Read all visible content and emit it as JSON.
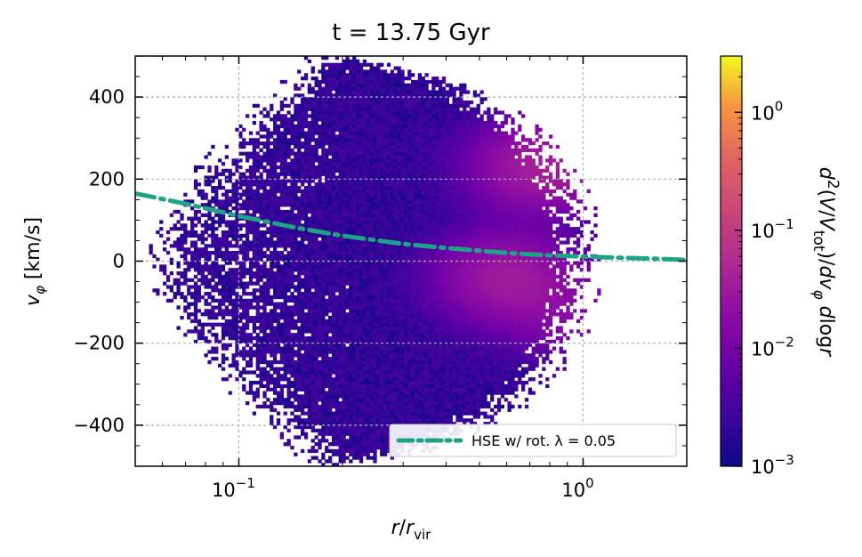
{
  "chart_data": {
    "type": "heatmap",
    "title": "t = 13.75 Gyr",
    "xlabel": "r/r_vir",
    "ylabel": "v_φ [km/s]",
    "x_scale": "log",
    "xlim": [
      0.05,
      2.0
    ],
    "ylim": [
      -500,
      500
    ],
    "x_ticks": [
      {
        "value": 0.1,
        "base": "10",
        "exp": "−1"
      },
      {
        "value": 1.0,
        "base": "10",
        "exp": "0"
      }
    ],
    "y_ticks": [
      {
        "value": 400,
        "label": "400"
      },
      {
        "value": 200,
        "label": "200"
      },
      {
        "value": 0,
        "label": "0"
      },
      {
        "value": -200,
        "label": "−200"
      },
      {
        "value": -400,
        "label": "−400"
      }
    ],
    "grid": true,
    "colormap": "plasma",
    "colorbar": {
      "label": "d²(V/V_tot)/dv_φ dlogr",
      "scale": "log",
      "range": [
        0.001,
        3.0
      ],
      "ticks": [
        {
          "value": 0.001,
          "base": "10",
          "exp": "−3"
        },
        {
          "value": 0.01,
          "base": "10",
          "exp": "−2"
        },
        {
          "value": 0.1,
          "base": "10",
          "exp": "−1"
        },
        {
          "value": 1.0,
          "base": "10",
          "exp": "0"
        }
      ]
    },
    "density_features": [
      {
        "r": 0.75,
        "v": 230,
        "level": 0.035
      },
      {
        "r": 0.6,
        "v": -40,
        "level": 0.03
      },
      {
        "r": 0.9,
        "v": -120,
        "level": 0.012
      }
    ],
    "series": [
      {
        "name": "HSE w/ rot. λ = 0.05",
        "color": "#1fa387",
        "style": "dashdot",
        "x": [
          0.05,
          0.07,
          0.1,
          0.15,
          0.2,
          0.3,
          0.4,
          0.6,
          0.8,
          1.0,
          1.3,
          1.6,
          2.0
        ],
        "y": [
          165,
          140,
          110,
          80,
          62,
          42,
          32,
          20,
          14,
          11,
          8,
          6,
          3
        ]
      }
    ],
    "legend_position": "bottom-right"
  }
}
